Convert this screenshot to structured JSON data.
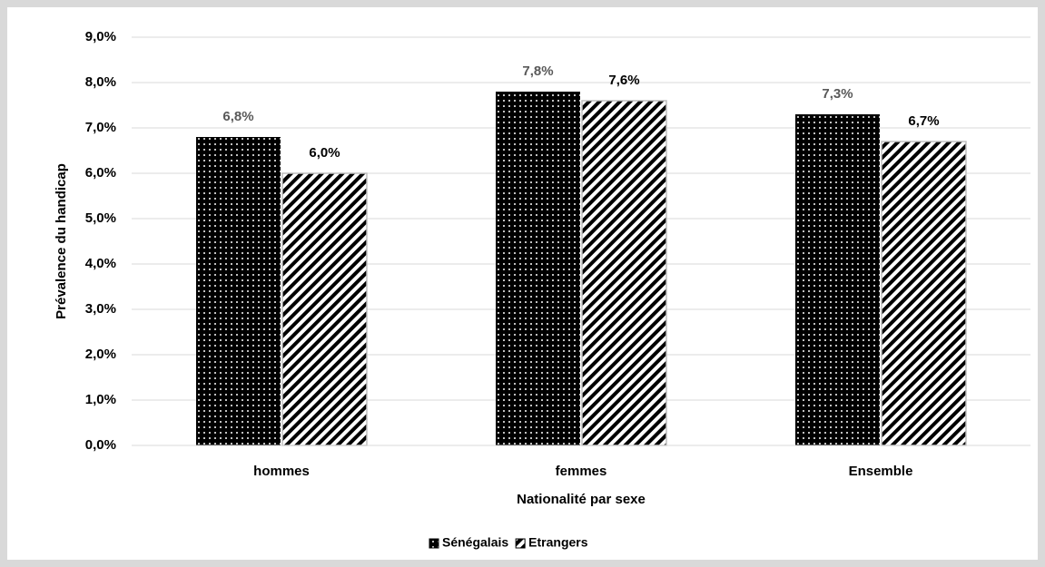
{
  "chart_data": {
    "type": "bar",
    "categories": [
      "hommes",
      "femmes",
      "Ensemble"
    ],
    "series": [
      {
        "name": "Sénégalais",
        "color": "#000000",
        "pattern": "dots",
        "values": [
          6.8,
          7.8,
          7.3
        ],
        "value_labels": [
          "6,8%",
          "7,8%",
          "7,3%"
        ]
      },
      {
        "name": "Etrangers",
        "color": "#000000",
        "pattern": "stripes",
        "values": [
          6.0,
          7.6,
          6.7
        ],
        "value_labels": [
          "6,0%",
          "7,6%",
          "6,7%"
        ]
      }
    ],
    "ylim": [
      0,
      9
    ],
    "yticks": [
      {
        "value": 0,
        "label": "0,0%"
      },
      {
        "value": 1,
        "label": "1,0%"
      },
      {
        "value": 2,
        "label": "2,0%"
      },
      {
        "value": 3,
        "label": "3,0%"
      },
      {
        "value": 4,
        "label": "4,0%"
      },
      {
        "value": 5,
        "label": "5,0%"
      },
      {
        "value": 6,
        "label": "6,0%"
      },
      {
        "value": 7,
        "label": "7,0%"
      },
      {
        "value": 8,
        "label": "8,0%"
      },
      {
        "value": 9,
        "label": "9,0%"
      }
    ],
    "y_label": "Prévalence du handicap",
    "x_label": "Nationalité par sexe",
    "grid": true,
    "legend": "bottom"
  }
}
